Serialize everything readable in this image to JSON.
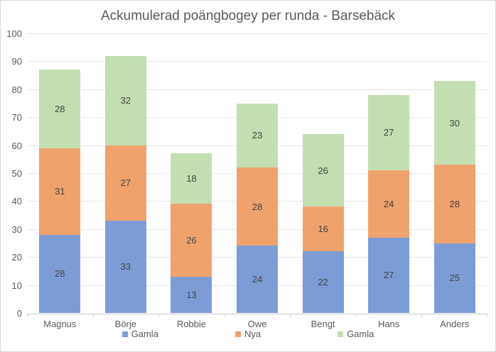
{
  "title": "Ackumulerad poängbogey per runda - Barsebäck",
  "chart_data": {
    "type": "bar",
    "stacked": true,
    "title": "Ackumulerad poängbogey per runda - Barsebäck",
    "categories": [
      "Magnus",
      "Börje",
      "Robbie",
      "Owe",
      "Bengt",
      "Hans",
      "Anders"
    ],
    "series": [
      {
        "name": "Gamla",
        "color": "#7d9cd6",
        "values": [
          28,
          33,
          13,
          24,
          22,
          27,
          25
        ]
      },
      {
        "name": "Nya",
        "color": "#f0a26d",
        "values": [
          31,
          27,
          26,
          28,
          16,
          24,
          28
        ]
      },
      {
        "name": "Gamla",
        "color": "#c3dfb1",
        "values": [
          28,
          32,
          18,
          23,
          26,
          27,
          30
        ]
      }
    ],
    "totals": [
      87,
      92,
      57,
      75,
      64,
      78,
      83
    ],
    "ylim": [
      0,
      100
    ],
    "ytick_step": 10,
    "ytick_labels": [
      "0",
      "10",
      "20",
      "30",
      "40",
      "50",
      "60",
      "70",
      "80",
      "90",
      "100"
    ],
    "grid": true,
    "data_labels": true,
    "legend_position": "bottom",
    "legend_entries": [
      "Gamla",
      "Nya",
      "Gamla"
    ]
  },
  "colors": {
    "title_text": "#595959",
    "axis_text": "#595959",
    "data_label_text": "#404040",
    "gridline": "#e8e8e8",
    "axis_line": "#c8c8c8",
    "border": "#d9d9d9",
    "series_blue": "#7d9cd6",
    "series_orange": "#f0a26d",
    "series_green": "#c3dfb1"
  }
}
